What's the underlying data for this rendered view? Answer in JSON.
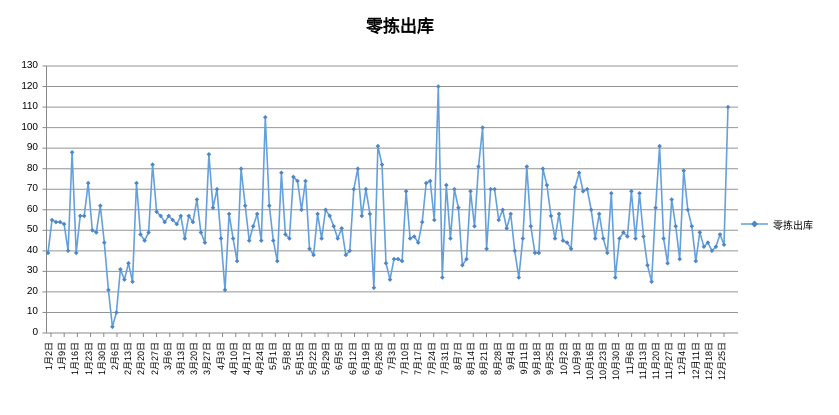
{
  "title": "零拣出库",
  "legend": {
    "label": "零拣出库"
  },
  "colors": {
    "line": "#64a0dc",
    "marker": "#4f86c6",
    "grid": "#949494",
    "axis": "#898989",
    "text": "#000000",
    "background": "#ffffff"
  },
  "chart_data": {
    "type": "line",
    "title": "零拣出库",
    "series_name": "零拣出库",
    "marker": "diamond",
    "grid": true,
    "legend_position": "right",
    "ylim": [
      0,
      130
    ],
    "y_ticks": [
      0,
      10,
      20,
      30,
      40,
      50,
      60,
      70,
      80,
      90,
      100,
      110,
      120,
      130
    ],
    "x_tick_labels": [
      "1月2日",
      "1月9日",
      "1月16日",
      "1月23日",
      "1月30日",
      "2月6日",
      "2月13日",
      "2月20日",
      "2月27日",
      "3月6日",
      "3月13日",
      "3月20日",
      "3月27日",
      "4月3日",
      "4月10日",
      "4月17日",
      "4月24日",
      "5月1日",
      "5月8日",
      "5月15日",
      "5月22日",
      "5月29日",
      "6月5日",
      "6月12日",
      "6月19日",
      "6月26日",
      "7月3日",
      "7月10日",
      "7月17日",
      "7月24日",
      "7月31日",
      "8月7日",
      "8月14日",
      "8月21日",
      "8月28日",
      "9月4日",
      "9月11日",
      "9月18日",
      "9月25日",
      "10月2日",
      "10月9日",
      "10月16日",
      "10月23日",
      "10月30日",
      "11月6日",
      "11月13日",
      "11月20日",
      "11月27日",
      "12月4日",
      "12月11日",
      "12月18日",
      "12月25日"
    ],
    "values": [
      39,
      55,
      54,
      54,
      53,
      40,
      88,
      39,
      57,
      57,
      73,
      50,
      49,
      62,
      44,
      21,
      3,
      10,
      31,
      26,
      34,
      25,
      73,
      48,
      45,
      49,
      82,
      59,
      57,
      54,
      57,
      55,
      53,
      57,
      46,
      57,
      54,
      65,
      49,
      44,
      87,
      61,
      70,
      46,
      21,
      58,
      46,
      35,
      80,
      62,
      45,
      52,
      58,
      45,
      105,
      62,
      45,
      35,
      78,
      48,
      46,
      76,
      74,
      60,
      74,
      41,
      38,
      58,
      46,
      60,
      57,
      52,
      46,
      51,
      38,
      40,
      70,
      80,
      57,
      70,
      58,
      22,
      91,
      82,
      34,
      26,
      36,
      36,
      35,
      69,
      46,
      47,
      44,
      54,
      73,
      74,
      55,
      120,
      27,
      72,
      46,
      70,
      61,
      33,
      36,
      69,
      52,
      81,
      100,
      41,
      70,
      70,
      55,
      60,
      51,
      58,
      40,
      27,
      46,
      81,
      52,
      39,
      39,
      80,
      72,
      57,
      46,
      58,
      45,
      44,
      41,
      71,
      78,
      69,
      70,
      60,
      46,
      58,
      46,
      39,
      68,
      27,
      46,
      49,
      47,
      69,
      46,
      68,
      47,
      33,
      25,
      61,
      91,
      46,
      34,
      65,
      52,
      36,
      79,
      60,
      52,
      35,
      49,
      42,
      44,
      40,
      42,
      48,
      43,
      110
    ]
  }
}
